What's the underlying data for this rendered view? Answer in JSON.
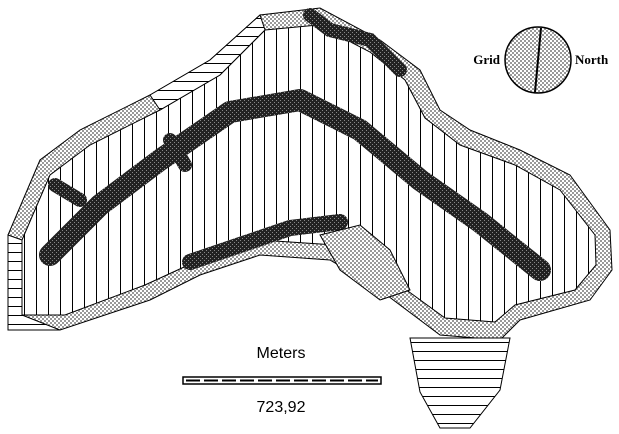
{
  "legend": {
    "grid_label": "Grid",
    "north_label": "North"
  },
  "scale_bar": {
    "unit": "Meters",
    "length": "723,92"
  }
}
